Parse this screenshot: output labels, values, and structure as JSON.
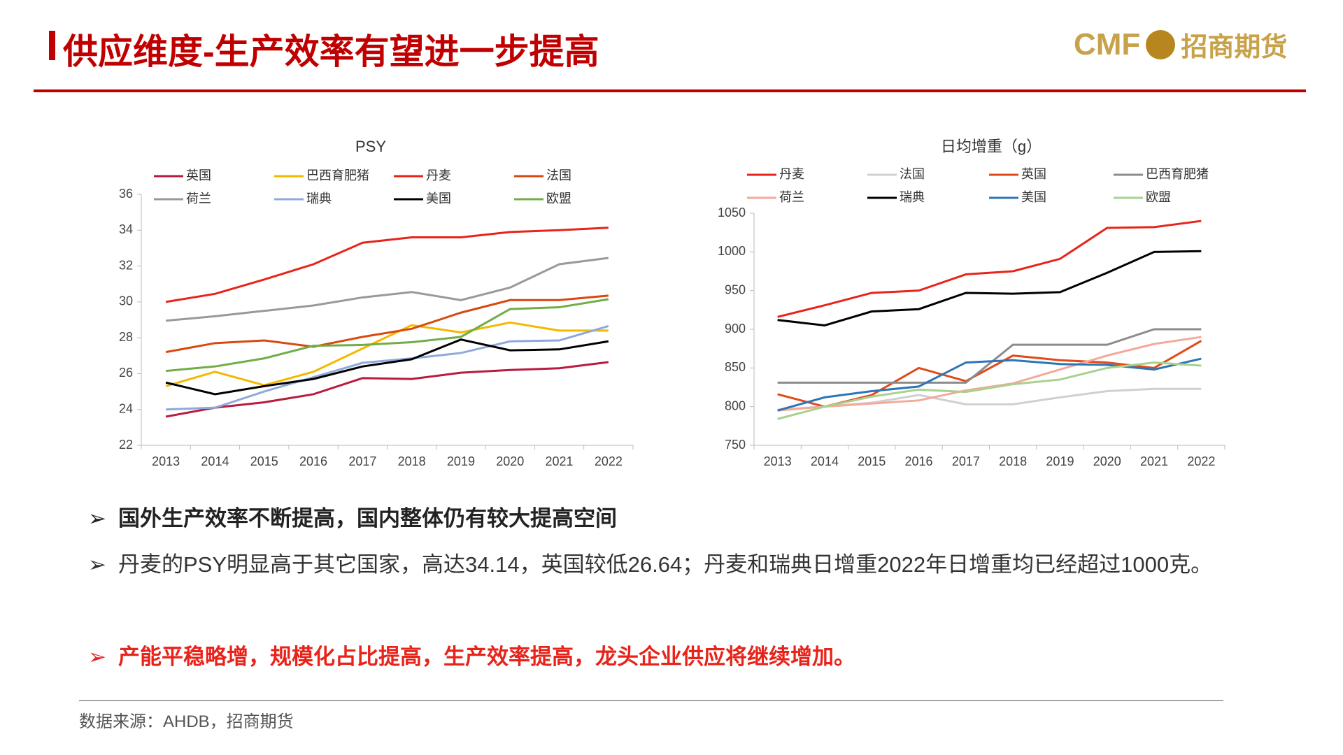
{
  "header": {
    "title": "供应维度-生产效率有望进一步提高",
    "logo_text": "CMF",
    "logo_brand": "招商期货"
  },
  "chart_data": [
    {
      "type": "line",
      "title": "PSY",
      "categories": [
        "2013",
        "2014",
        "2015",
        "2016",
        "2017",
        "2018",
        "2019",
        "2020",
        "2021",
        "2022"
      ],
      "ylim": [
        22,
        36
      ],
      "yticks": [
        22,
        24,
        26,
        28,
        30,
        32,
        34,
        36
      ],
      "grid": false,
      "legend": "top",
      "series": [
        {
          "name": "英国",
          "color": "#b81b3e",
          "values": [
            23.6,
            24.1,
            24.4,
            24.85,
            25.75,
            25.7,
            26.05,
            26.2,
            26.3,
            26.64
          ]
        },
        {
          "name": "巴西育肥猪",
          "color": "#f5b800",
          "values": [
            25.3,
            26.1,
            25.35,
            26.1,
            27.4,
            28.7,
            28.3,
            28.85,
            28.4,
            28.4
          ]
        },
        {
          "name": "丹麦",
          "color": "#e8231a",
          "values": [
            30.0,
            30.45,
            31.25,
            32.1,
            33.3,
            33.6,
            33.6,
            33.9,
            34.0,
            34.14
          ]
        },
        {
          "name": "法国",
          "color": "#d9480f",
          "values": [
            27.2,
            27.7,
            27.85,
            27.5,
            28.05,
            28.5,
            29.4,
            30.1,
            30.1,
            30.35
          ]
        },
        {
          "name": "荷兰",
          "color": "#999999",
          "values": [
            28.95,
            29.2,
            29.5,
            29.8,
            30.25,
            30.55,
            30.1,
            30.8,
            32.1,
            32.45
          ]
        },
        {
          "name": "瑞典",
          "color": "#8fa9dc",
          "values": [
            24.0,
            24.1,
            25.0,
            25.8,
            26.6,
            26.85,
            27.15,
            27.8,
            27.85,
            28.65
          ]
        },
        {
          "name": "美国",
          "color": "#000000",
          "values": [
            25.5,
            24.85,
            25.3,
            25.7,
            26.4,
            26.8,
            27.9,
            27.3,
            27.35,
            27.8
          ]
        },
        {
          "name": "欧盟",
          "color": "#70ad47",
          "values": [
            26.15,
            26.4,
            26.85,
            27.55,
            27.6,
            27.75,
            28.05,
            29.6,
            29.7,
            30.15
          ]
        }
      ]
    },
    {
      "type": "line",
      "title": "日均增重（g）",
      "categories": [
        "2013",
        "2014",
        "2015",
        "2016",
        "2017",
        "2018",
        "2019",
        "2020",
        "2021",
        "2022"
      ],
      "ylim": [
        750,
        1050
      ],
      "yticks": [
        750,
        800,
        850,
        900,
        950,
        1000,
        1050
      ],
      "grid": false,
      "legend": "top",
      "series": [
        {
          "name": "丹麦",
          "color": "#e8231a",
          "values": [
            916,
            931,
            947,
            950,
            971,
            975,
            991,
            1031,
            1032,
            1040
          ]
        },
        {
          "name": "法国",
          "color": "#d0d0d0",
          "values": [
            796,
            800,
            805,
            815,
            803,
            803,
            812,
            820,
            823,
            823
          ]
        },
        {
          "name": "英国",
          "color": "#e04a1a",
          "values": [
            816,
            800,
            815,
            850,
            833,
            866,
            860,
            857,
            850,
            885
          ]
        },
        {
          "name": "巴西育肥猪",
          "color": "#8c8c8c",
          "values": [
            831,
            831,
            831,
            831,
            831,
            880,
            880,
            880,
            900,
            900
          ]
        },
        {
          "name": "荷兰",
          "color": "#f4a99a",
          "values": [
            795,
            800,
            804,
            808,
            821,
            830,
            848,
            866,
            881,
            890
          ]
        },
        {
          "name": "瑞典",
          "color": "#000000",
          "values": [
            912,
            905,
            923,
            926,
            947,
            946,
            948,
            973,
            1000,
            1001
          ]
        },
        {
          "name": "美国",
          "color": "#2e75b6",
          "values": [
            795,
            812,
            820,
            826,
            857,
            860,
            855,
            854,
            848,
            862
          ]
        },
        {
          "name": "欧盟",
          "color": "#a9d18e",
          "values": [
            784,
            800,
            813,
            822,
            819,
            829,
            835,
            850,
            857,
            853
          ]
        }
      ]
    }
  ],
  "bullets": [
    "国外生产效率不断提高，国内整体仍有较大提高空间",
    "丹麦的PSY明显高于其它国家，高达34.14，英国较低26.64；丹麦和瑞典日增重2022年日增重均已经超过1000克。",
    "产能平稳略增，规模化占比提高，生产效率提高，龙头企业供应将继续增加。"
  ],
  "source": "数据来源：AHDB，招商期货"
}
